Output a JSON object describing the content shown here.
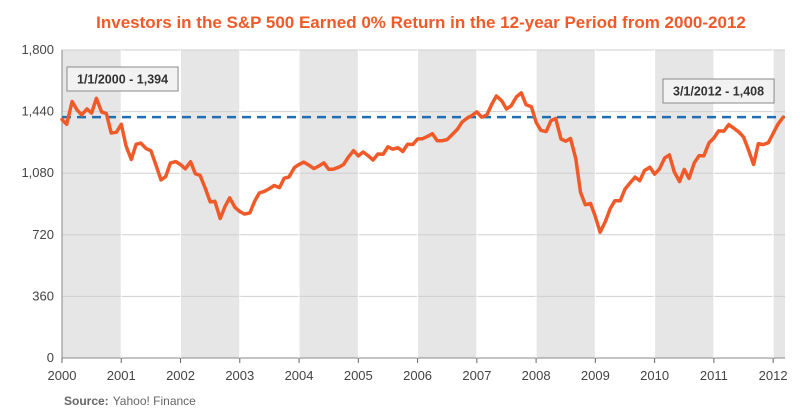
{
  "chart_data": {
    "type": "line",
    "title": "Investors in the S&P 500 Earned 0% Return in the 12-year Period from 2000-2012",
    "source_label": "Source:",
    "source_value": "Yahoo! Finance",
    "ylim": [
      0,
      1800
    ],
    "yticks": [
      0,
      360,
      720,
      1080,
      1440,
      1800
    ],
    "ytick_labels": [
      "0",
      "360",
      "720",
      "1,080",
      "1,440",
      "1,800"
    ],
    "xlim": [
      2000,
      2012.2
    ],
    "xticks": [
      2000,
      2001,
      2002,
      2003,
      2004,
      2005,
      2006,
      2007,
      2008,
      2009,
      2010,
      2011,
      2012
    ],
    "xtick_labels": [
      "2000",
      "2001",
      "2002",
      "2003",
      "2004",
      "2005",
      "2006",
      "2007",
      "2008",
      "2009",
      "2010",
      "2011",
      "2012"
    ],
    "grid": true,
    "alternating_year_bands": true,
    "reference_line": {
      "value": 1408,
      "style": "dashed"
    },
    "annotations": [
      {
        "text": "1/1/2000 - 1,394",
        "x": 2000.0,
        "y": 1394
      },
      {
        "text": "3/1/2012 - 1,408",
        "x": 2012.17,
        "y": 1408
      }
    ],
    "colors": {
      "line": "#f05a28",
      "reference": "#1f6fb4",
      "title": "#f05a28",
      "band": "#e6e6e6",
      "grid": "#ffffff"
    },
    "series": [
      {
        "x": [
          2000.0,
          2000.08,
          2000.17,
          2000.25,
          2000.33,
          2000.42,
          2000.5,
          2000.58,
          2000.67,
          2000.75,
          2000.83,
          2000.92,
          2001.0,
          2001.08,
          2001.17,
          2001.25,
          2001.33,
          2001.42,
          2001.5,
          2001.58,
          2001.67,
          2001.75,
          2001.83,
          2001.92,
          2002.0,
          2002.08,
          2002.17,
          2002.25,
          2002.33,
          2002.42,
          2002.5,
          2002.58,
          2002.67,
          2002.75,
          2002.83,
          2002.92,
          2003.0,
          2003.08,
          2003.17,
          2003.25,
          2003.33,
          2003.42,
          2003.5,
          2003.58,
          2003.67,
          2003.75,
          2003.83,
          2003.92,
          2004.0,
          2004.08,
          2004.17,
          2004.25,
          2004.33,
          2004.42,
          2004.5,
          2004.58,
          2004.67,
          2004.75,
          2004.83,
          2004.92,
          2005.0,
          2005.08,
          2005.17,
          2005.25,
          2005.33,
          2005.42,
          2005.5,
          2005.58,
          2005.67,
          2005.75,
          2005.83,
          2005.92,
          2006.0,
          2006.08,
          2006.17,
          2006.25,
          2006.33,
          2006.42,
          2006.5,
          2006.58,
          2006.67,
          2006.75,
          2006.83,
          2006.92,
          2007.0,
          2007.08,
          2007.17,
          2007.25,
          2007.33,
          2007.42,
          2007.5,
          2007.58,
          2007.67,
          2007.75,
          2007.83,
          2007.92,
          2008.0,
          2008.08,
          2008.17,
          2008.25,
          2008.33,
          2008.42,
          2008.5,
          2008.58,
          2008.67,
          2008.75,
          2008.83,
          2008.92,
          2009.0,
          2009.08,
          2009.17,
          2009.25,
          2009.33,
          2009.42,
          2009.5,
          2009.58,
          2009.67,
          2009.75,
          2009.83,
          2009.92,
          2010.0,
          2010.08,
          2010.17,
          2010.25,
          2010.33,
          2010.42,
          2010.5,
          2010.58,
          2010.67,
          2010.75,
          2010.83,
          2010.92,
          2011.0,
          2011.08,
          2011.17,
          2011.25,
          2011.33,
          2011.42,
          2011.5,
          2011.58,
          2011.67,
          2011.75,
          2011.83,
          2011.92,
          2012.0,
          2012.08,
          2012.17
        ],
        "values": [
          1394,
          1366,
          1499,
          1452,
          1421,
          1455,
          1431,
          1518,
          1437,
          1429,
          1315,
          1320,
          1366,
          1240,
          1160,
          1249,
          1256,
          1224,
          1211,
          1134,
          1041,
          1060,
          1139,
          1148,
          1130,
          1106,
          1147,
          1077,
          1067,
          990,
          912,
          916,
          815,
          885,
          936,
          880,
          856,
          841,
          848,
          916,
          964,
          975,
          990,
          1008,
          996,
          1051,
          1058,
          1112,
          1131,
          1145,
          1126,
          1107,
          1121,
          1141,
          1102,
          1104,
          1115,
          1130,
          1173,
          1212,
          1181,
          1204,
          1181,
          1157,
          1192,
          1191,
          1234,
          1220,
          1229,
          1207,
          1249,
          1248,
          1280,
          1281,
          1295,
          1311,
          1270,
          1270,
          1277,
          1304,
          1336,
          1378,
          1401,
          1418,
          1438,
          1407,
          1421,
          1482,
          1531,
          1503,
          1455,
          1474,
          1527,
          1549,
          1481,
          1468,
          1378,
          1331,
          1323,
          1386,
          1400,
          1280,
          1267,
          1283,
          1165,
          969,
          896,
          903,
          826,
          735,
          798,
          873,
          919,
          919,
          987,
          1021,
          1057,
          1036,
          1096,
          1115,
          1074,
          1104,
          1169,
          1187,
          1089,
          1031,
          1102,
          1049,
          1141,
          1183,
          1181,
          1258,
          1286,
          1327,
          1326,
          1364,
          1345,
          1321,
          1292,
          1219,
          1131,
          1253,
          1247,
          1258,
          1312,
          1366,
          1408
        ]
      }
    ]
  }
}
